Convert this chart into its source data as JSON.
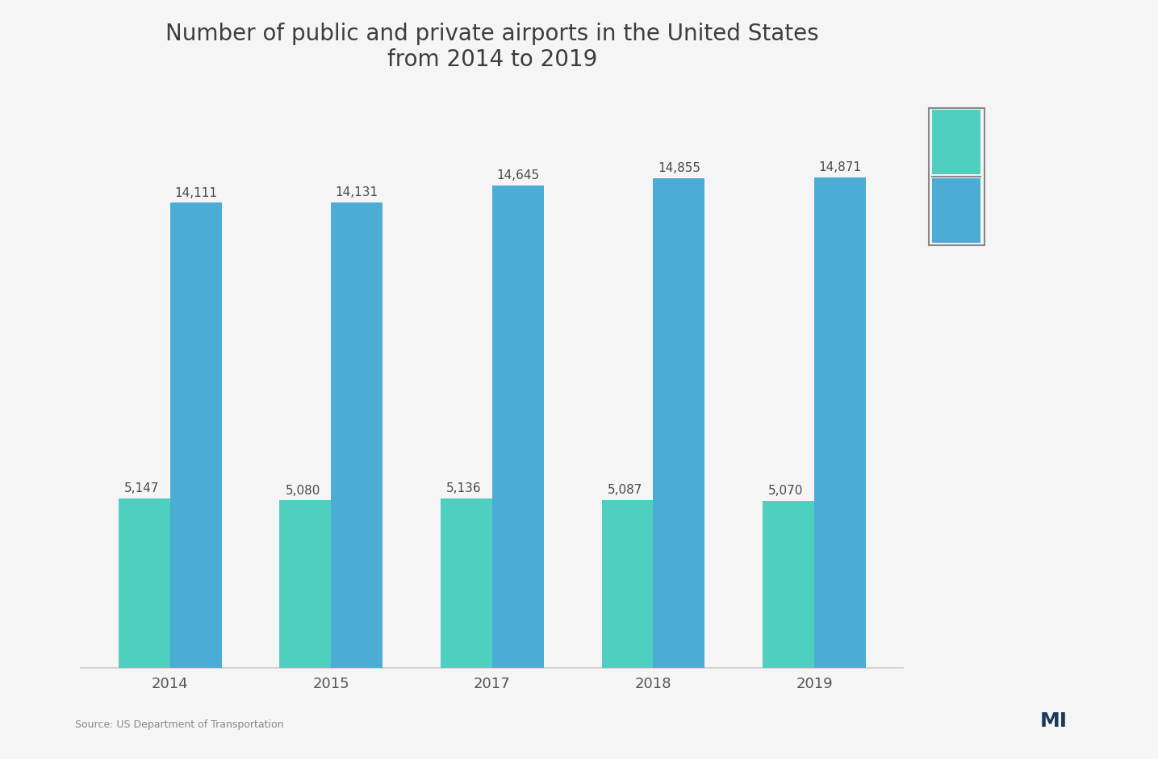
{
  "title_line1": "Number of public and private airports in the United States",
  "title_line2": "from 2014 to 2019",
  "title_fontsize": 20,
  "title_color": "#3d3d3d",
  "bg_color": "#f5f5f5",
  "plot_bg_color": "#f5f5f5",
  "categories": [
    "2014",
    "2015",
    "2017",
    "2018",
    "2019"
  ],
  "private_values": [
    14111,
    14131,
    14645,
    14855,
    14871
  ],
  "public_values": [
    5147,
    5080,
    5136,
    5087,
    5070
  ],
  "private_labels": [
    "14,111",
    "14,131",
    "14,645",
    "14,855",
    "14,871"
  ],
  "public_labels": [
    "5,147",
    "5,080",
    "5,136",
    "5,087",
    "5,070"
  ],
  "private_color": "#4bacd6",
  "public_color": "#4ecfbf",
  "bar_label_color": "#4a4a4a",
  "bar_width": 0.32,
  "ylim_max": 17500,
  "x_tick_fontsize": 13,
  "label_fontsize": 11,
  "source_text": "Source: US Department of Transportation",
  "legend_border_color": "#888888",
  "xtick_color": "#555555",
  "axis_line_color": "#cccccc"
}
